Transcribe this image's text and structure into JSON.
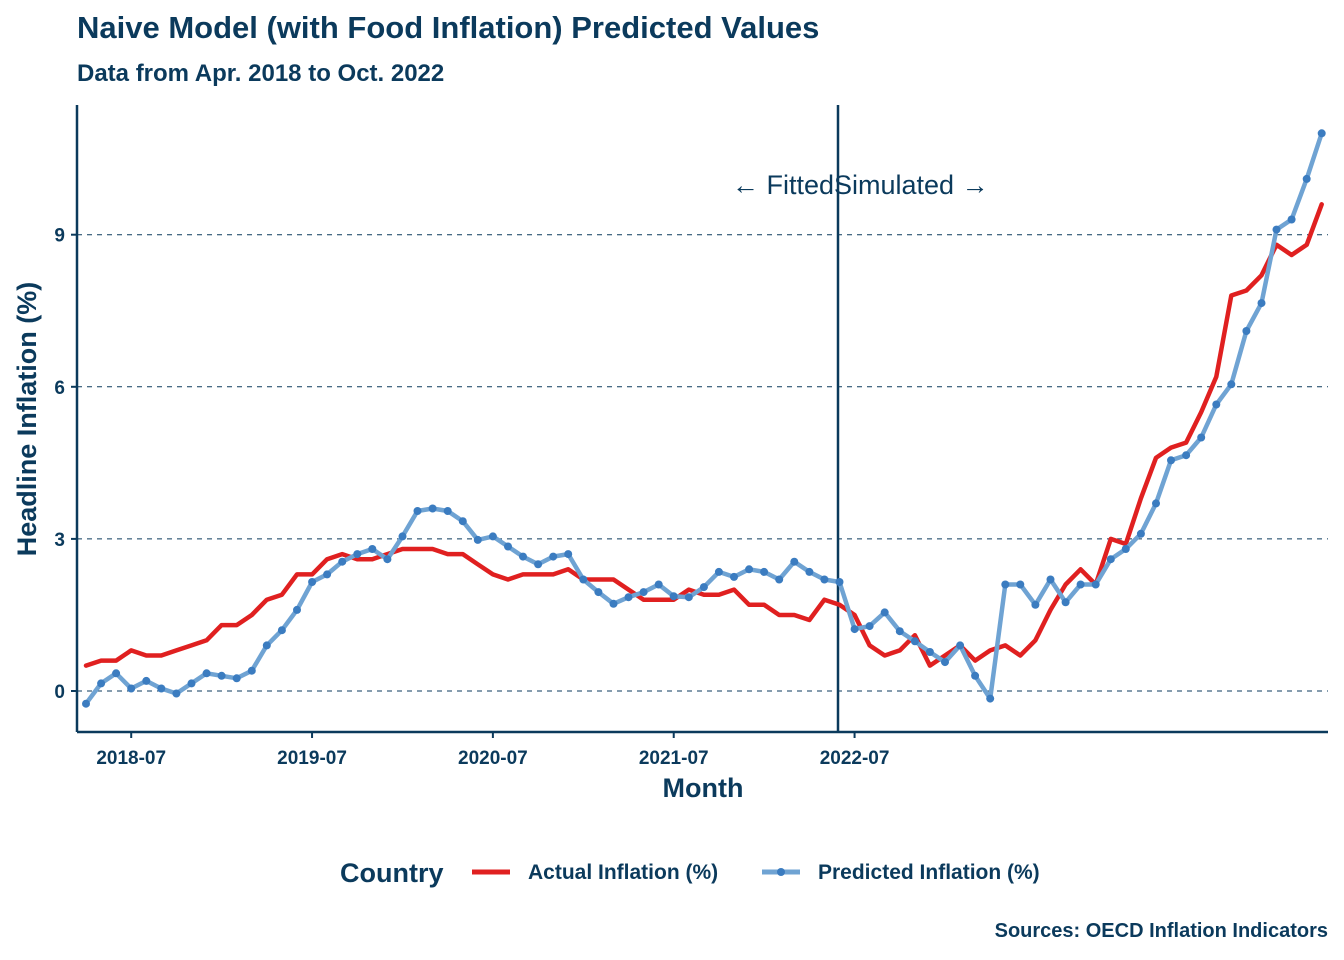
{
  "title": "Naive Model (with Food Inflation) Predicted Values",
  "subtitle": "Data from Apr. 2018 to Oct. 2022",
  "caption": "Sources: OECD Inflation Indicators",
  "colors": {
    "text": "#0b3a5c",
    "actual": "#e02020",
    "predicted": "#6fa3d3",
    "predicted_point": "#3b7cc0"
  },
  "chart_data": {
    "type": "line",
    "title": "Naive Model (with Food Inflation) Predicted Values",
    "subtitle": "Data from Apr. 2018 to Oct. 2022",
    "xlabel": "Month",
    "ylabel": "Headline Inflation (%)",
    "x_ticks": [
      "2018-07",
      "2019-07",
      "2020-07",
      "2021-07",
      "2022-07"
    ],
    "y_ticks": [
      0,
      3,
      6,
      9
    ],
    "ylim": [
      -0.8,
      11.4
    ],
    "grid": "horizontal dashed",
    "legend_title": "Country",
    "legend_position": "bottom",
    "annotations": {
      "vline_label_left": "← Fitted",
      "vline_label_right": "Simulated →"
    },
    "series": [
      {
        "name": "Actual Inflation (%)",
        "style": "line",
        "values": [
          0.5,
          0.6,
          0.6,
          0.8,
          0.7,
          0.7,
          0.8,
          0.9,
          1.0,
          1.3,
          1.3,
          1.5,
          1.8,
          1.9,
          2.3,
          2.3,
          2.6,
          2.7,
          2.6,
          2.6,
          2.7,
          2.8,
          2.8,
          2.8,
          2.7,
          2.7,
          2.5,
          2.3,
          2.2,
          2.3,
          2.3,
          2.3,
          2.4,
          2.2,
          2.2,
          2.2,
          2.0,
          1.8,
          1.8,
          1.8,
          2.0,
          1.9,
          1.9,
          2.0,
          1.7,
          1.7,
          1.5,
          1.5,
          1.4,
          1.8,
          1.7,
          1.5,
          0.9,
          0.7,
          0.8,
          1.1,
          0.5,
          0.7,
          0.9,
          0.6,
          0.8,
          0.9,
          0.7,
          1.0,
          1.6,
          2.1,
          2.4,
          2.1,
          3.0,
          2.9,
          3.8,
          4.6,
          4.8,
          4.9,
          5.5,
          6.2,
          7.8,
          7.9,
          8.2,
          8.8,
          8.6,
          8.8,
          9.6
        ]
      },
      {
        "name": "Predicted Inflation (%)",
        "style": "line+points",
        "values": [
          -0.25,
          0.15,
          0.35,
          0.05,
          0.2,
          0.05,
          -0.05,
          0.15,
          0.35,
          0.3,
          0.25,
          0.4,
          0.9,
          1.2,
          1.6,
          2.15,
          2.3,
          2.55,
          2.7,
          2.8,
          2.6,
          3.05,
          3.55,
          3.6,
          3.55,
          3.35,
          2.98,
          3.05,
          2.85,
          2.65,
          2.5,
          2.65,
          2.7,
          2.2,
          1.95,
          1.72,
          1.85,
          1.95,
          2.1,
          1.87,
          1.85,
          2.05,
          2.35,
          2.25,
          2.4,
          2.35,
          2.2,
          2.55,
          2.35,
          2.2,
          2.15,
          1.22,
          1.28,
          1.55,
          1.18,
          0.98,
          0.77,
          0.57,
          0.9,
          0.3,
          -0.15,
          2.1,
          2.1,
          1.7,
          2.2,
          1.75,
          2.1,
          2.1,
          2.6,
          2.8,
          3.1,
          3.7,
          4.55,
          4.65,
          5.0,
          5.65,
          6.05,
          7.1,
          7.65,
          9.1,
          9.3,
          10.1,
          11.0
        ]
      }
    ]
  }
}
